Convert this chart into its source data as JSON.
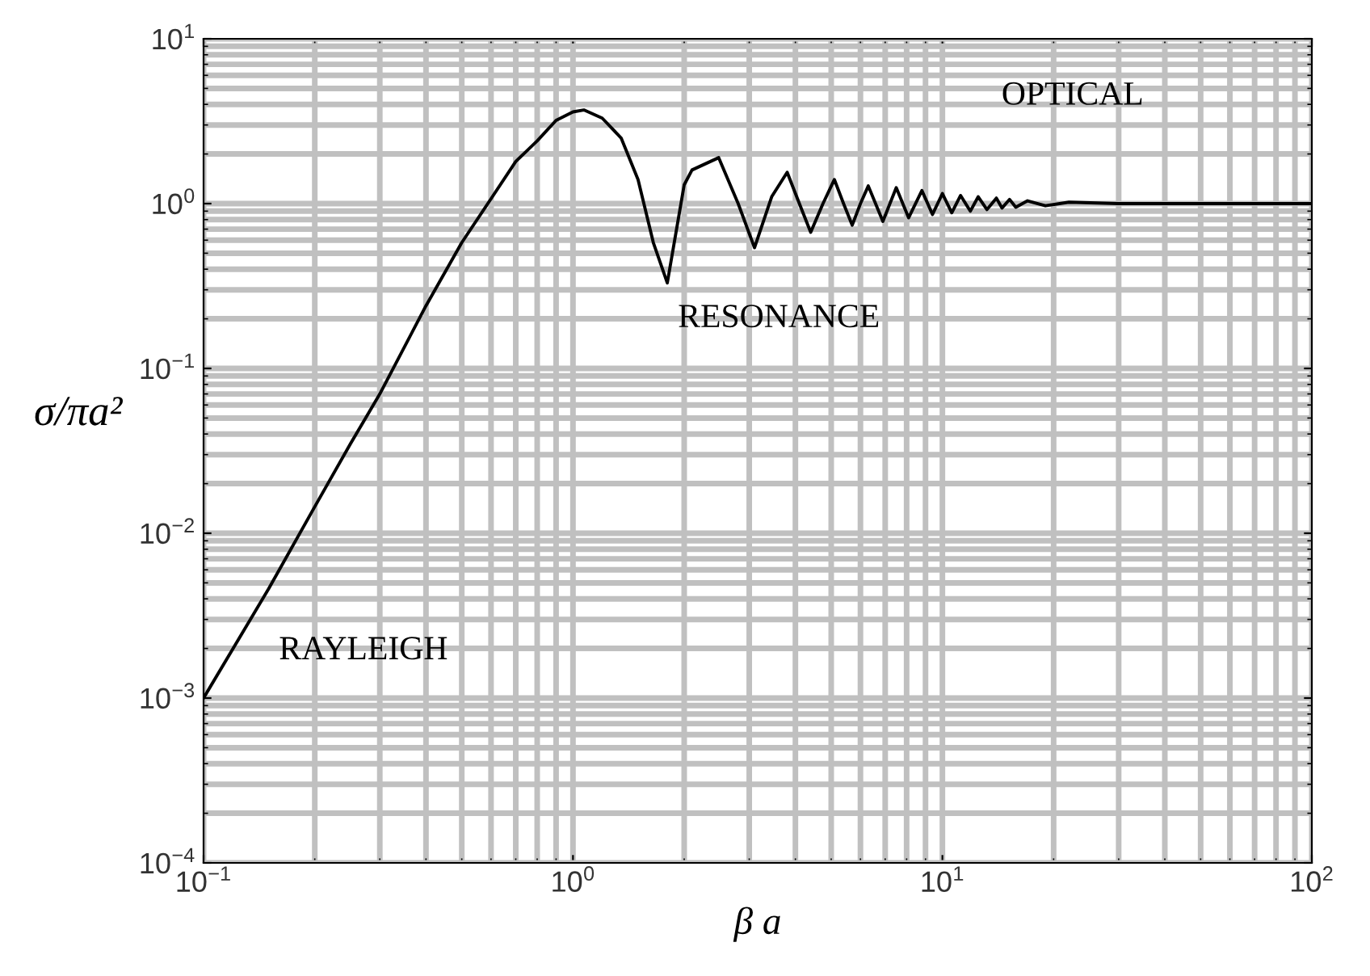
{
  "chart_data": {
    "type": "line",
    "xlabel": "β a",
    "ylabel": "σ/πa²",
    "log": "xy",
    "grid": true,
    "marker": "none",
    "line_style": "solid",
    "xlim": [
      0.1,
      100
    ],
    "ylim": [
      0.0001,
      10
    ],
    "xticks": [
      {
        "value": 0.1,
        "label": "10$^{−1}$"
      },
      {
        "value": 1,
        "label": "10$^{0}$"
      },
      {
        "value": 10,
        "label": "10$^{1}$"
      },
      {
        "value": 100,
        "label": "10$^{2}$"
      }
    ],
    "yticks": [
      {
        "value": 0.0001,
        "label": "10$^{−4}$"
      },
      {
        "value": 0.001,
        "label": "10$^{−3}$"
      },
      {
        "value": 0.01,
        "label": "10$^{−2}$"
      },
      {
        "value": 0.1,
        "label": "10$^{−1}$"
      },
      {
        "value": 1,
        "label": "10$^{0}$"
      },
      {
        "value": 10,
        "label": "10$^{1}$"
      }
    ],
    "series": [
      {
        "color": "#000000",
        "x": [
          0.1,
          0.15,
          0.2,
          0.25,
          0.3,
          0.4,
          0.5,
          0.6,
          0.7,
          0.8,
          0.9,
          1.0,
          1.07,
          1.2,
          1.35,
          1.5,
          1.65,
          1.8,
          2.0,
          2.1,
          2.48,
          2.8,
          3.1,
          3.45,
          3.8,
          4.1,
          4.4,
          4.75,
          5.1,
          5.4,
          5.7,
          6.0,
          6.3,
          6.9,
          7.5,
          8.1,
          8.8,
          9.4,
          10.0,
          10.6,
          11.2,
          11.9,
          12.5,
          13.2,
          14.0,
          14.5,
          15.2,
          15.8,
          17,
          19,
          22,
          30,
          50,
          100
        ],
        "values": [
          0.001,
          0.0046,
          0.0145,
          0.035,
          0.07,
          0.24,
          0.58,
          1.07,
          1.8,
          2.4,
          3.2,
          3.6,
          3.7,
          3.3,
          2.5,
          1.4,
          0.58,
          0.33,
          1.3,
          1.6,
          1.9,
          1.0,
          0.54,
          1.1,
          1.55,
          1.0,
          0.67,
          1.0,
          1.4,
          1.0,
          0.74,
          1.0,
          1.28,
          0.78,
          1.25,
          0.82,
          1.2,
          0.86,
          1.15,
          0.88,
          1.12,
          0.9,
          1.1,
          0.92,
          1.08,
          0.94,
          1.06,
          0.95,
          1.04,
          0.97,
          1.02,
          1.0,
          1.0,
          1.0
        ]
      }
    ],
    "annotations": [
      "RAYLEIGH",
      "RESONANCE",
      "OPTICAL"
    ]
  }
}
